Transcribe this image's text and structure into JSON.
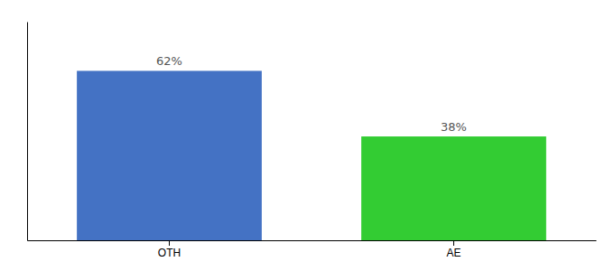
{
  "chart_data": {
    "type": "bar",
    "categories": [
      "OTH",
      "AE"
    ],
    "values": [
      62,
      38
    ],
    "value_labels": [
      "62%",
      "38%"
    ],
    "colors": [
      "#4472c4",
      "#33cc33"
    ],
    "ylim": [
      0,
      80
    ],
    "tick_labels": "x",
    "data_labels": true
  }
}
